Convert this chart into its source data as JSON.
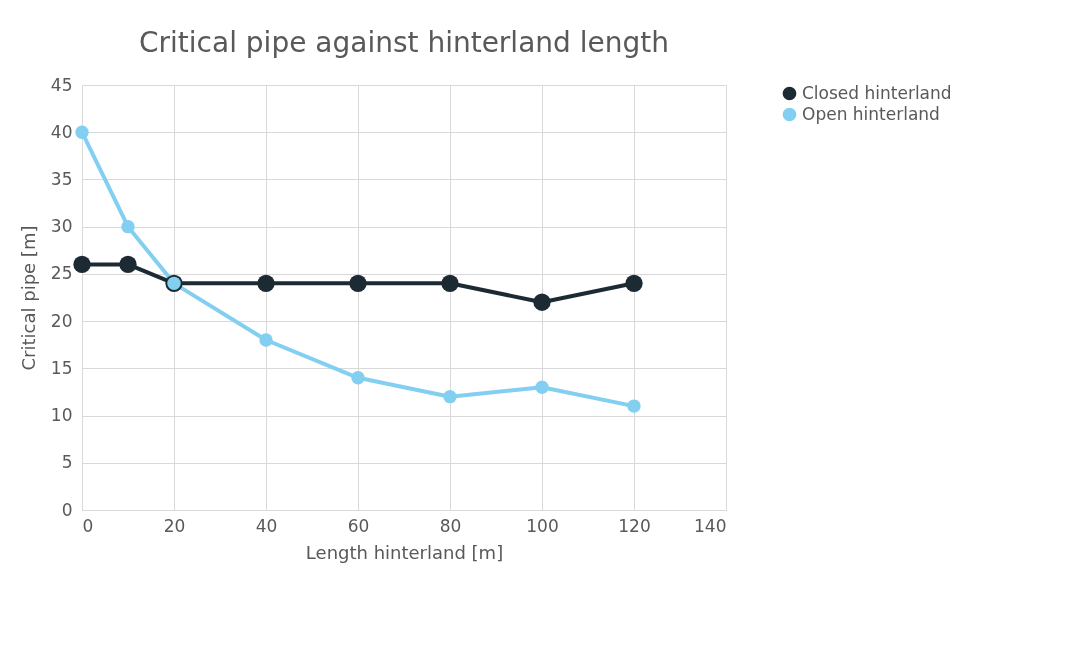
{
  "chart_data": {
    "type": "line",
    "title": "Critical pipe against hinterland length",
    "xlabel": "Length hinterland [m]",
    "ylabel": "Critical pipe [m]",
    "x": [
      0,
      10,
      20,
      40,
      60,
      80,
      100,
      120
    ],
    "series": [
      {
        "name": "Closed hinterland",
        "color": "#1c2b33",
        "values": [
          26,
          26,
          24,
          24,
          24,
          24,
          22,
          24
        ]
      },
      {
        "name": "Open hinterland",
        "color": "#82cff2",
        "values": [
          40,
          30,
          24,
          18,
          14,
          12,
          13,
          11
        ]
      }
    ],
    "xlim": [
      0,
      140
    ],
    "xticks": [
      0,
      20,
      40,
      60,
      80,
      100,
      120,
      140
    ],
    "ylim": [
      0,
      45
    ],
    "yticks": [
      0,
      5,
      10,
      15,
      20,
      25,
      30,
      35,
      40,
      45
    ],
    "grid": true,
    "legend": "right",
    "marker": "circle",
    "line_style": "solid"
  }
}
